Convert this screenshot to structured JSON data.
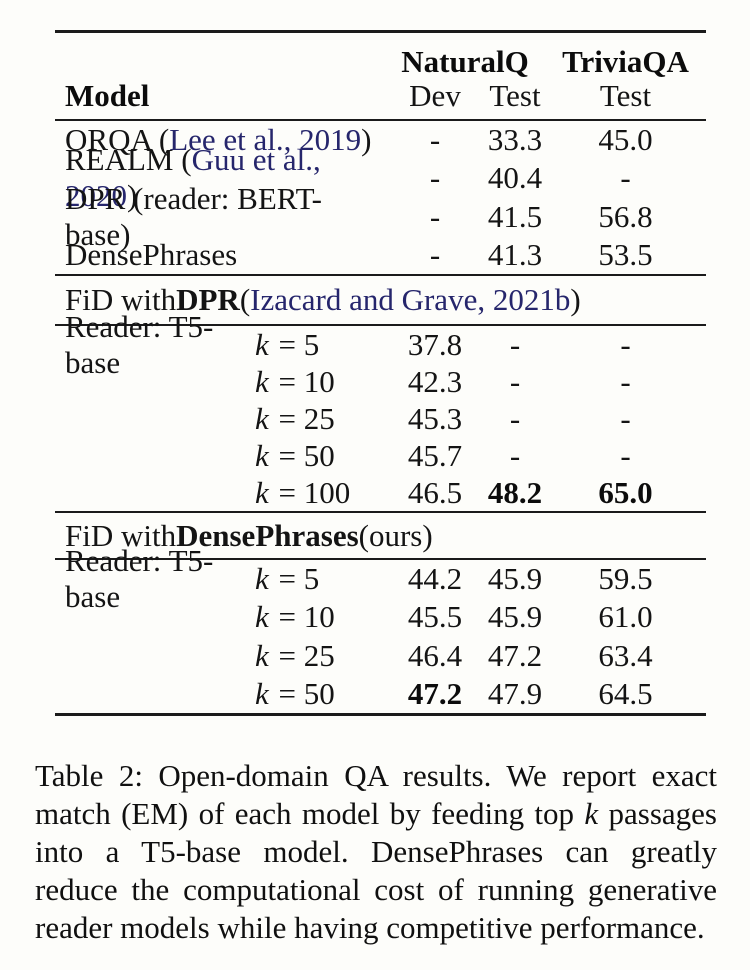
{
  "table": {
    "header": {
      "model": "Model",
      "naturalq": "NaturalQ",
      "triviaqa": "TriviaQA",
      "dev": "Dev",
      "test_nq": "Test",
      "test_trivia": "Test"
    },
    "baselines": {
      "rows": [
        {
          "name_pre": "ORQA (",
          "cite": "Lee et al., 2019",
          "name_post": ")",
          "dev": "-",
          "test": "33.3",
          "trivia": "45.0"
        },
        {
          "name_pre": "REALM (",
          "cite": "Guu et al., 2020",
          "name_post": ")",
          "dev": "-",
          "test": "40.4",
          "trivia": "-"
        },
        {
          "name_pre": "DPR (reader: BERT-base)",
          "cite": "",
          "name_post": "",
          "dev": "-",
          "test": "41.5",
          "trivia": "56.8"
        },
        {
          "name_pre": "DensePhrases",
          "cite": "",
          "name_post": "",
          "dev": "-",
          "test": "41.3",
          "trivia": "53.5"
        }
      ]
    },
    "fid_dpr": {
      "title_pre": "FiD with ",
      "title_bold": "DPR",
      "title_mid": " (",
      "title_cite": "Izacard and Grave, 2021b",
      "title_post": ")",
      "reader_label": "Reader: T5-base",
      "k_symbol": "k",
      "eq": "=",
      "rows": [
        {
          "k": "5",
          "dev": "37.8",
          "test": "-",
          "trivia": "-"
        },
        {
          "k": "10",
          "dev": "42.3",
          "test": "-",
          "trivia": "-"
        },
        {
          "k": "25",
          "dev": "45.3",
          "test": "-",
          "trivia": "-"
        },
        {
          "k": "50",
          "dev": "45.7",
          "test": "-",
          "trivia": "-"
        },
        {
          "k": "100",
          "dev": "46.5",
          "test": "48.2",
          "trivia": "65.0"
        }
      ]
    },
    "fid_densephrases": {
      "title_pre": "FiD with ",
      "title_bold": "DensePhrases",
      "title_mid": " (ours)",
      "title_cite": "",
      "title_post": "",
      "reader_label": "Reader: T5-base",
      "k_symbol": "k",
      "eq": "=",
      "rows": [
        {
          "k": "5",
          "dev": "44.2",
          "test": "45.9",
          "trivia": "59.5"
        },
        {
          "k": "10",
          "dev": "45.5",
          "test": "45.9",
          "trivia": "61.0"
        },
        {
          "k": "25",
          "dev": "46.4",
          "test": "47.2",
          "trivia": "63.4"
        },
        {
          "k": "50",
          "dev": "47.2",
          "test": "47.9",
          "trivia": "64.5"
        }
      ]
    }
  },
  "caption": {
    "pre": "Table 2: Open-domain QA results. We report exact match (EM) of each model by feeding top ",
    "k": "k",
    "post": " passages into a T5-base model. DensePhrases can greatly reduce the computational cost of running generative reader models while having competitive performance."
  },
  "colors": {
    "background": "#fdfdfa",
    "text": "#141414",
    "citation_link": "#26266c",
    "rule": "#1b1b1b"
  }
}
